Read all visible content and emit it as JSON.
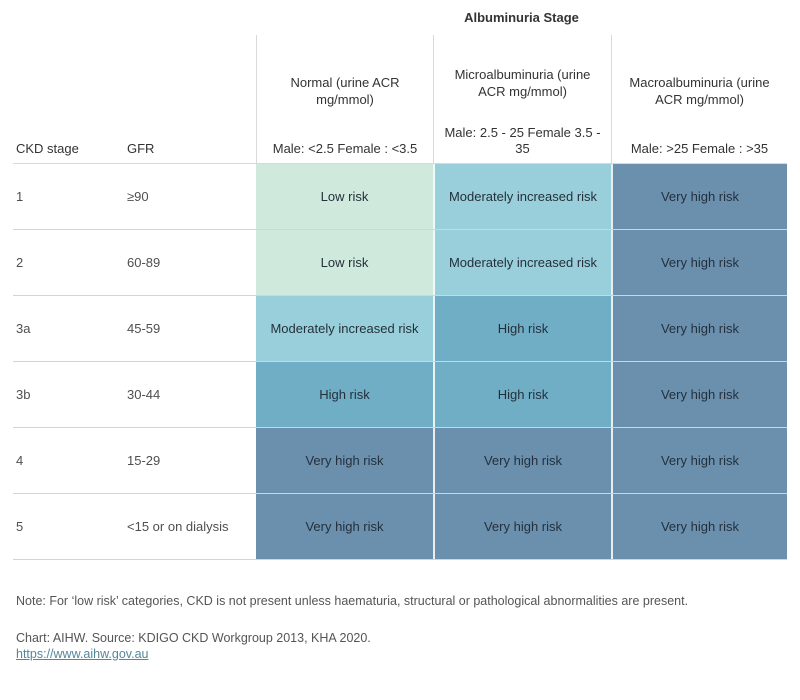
{
  "chart_data": {
    "type": "heatmap",
    "title": "Albuminuria Stage",
    "row_header_labels": [
      "CKD stage",
      "GFR"
    ],
    "columns": [
      {
        "label": "Normal (urine ACR mg/mmol)",
        "threshold": "Male: <2.5  Female : <3.5"
      },
      {
        "label": "Microalbuminuria (urine ACR mg/mmol)",
        "threshold": "Male: 2.5 - 25 Female 3.5 - 35"
      },
      {
        "label": "Macroalbuminuria (urine ACR mg/mmol)",
        "threshold": "Male: >25 Female : >35"
      }
    ],
    "rows": [
      {
        "stage": "1",
        "gfr": "≥90",
        "risks": [
          "Low risk",
          "Moderately increased risk",
          "Very high risk"
        ]
      },
      {
        "stage": "2",
        "gfr": "60-89",
        "risks": [
          "Low risk",
          "Moderately increased risk",
          "Very high risk"
        ]
      },
      {
        "stage": "3a",
        "gfr": "45-59",
        "risks": [
          "Moderately increased risk",
          "High risk",
          "Very high risk"
        ]
      },
      {
        "stage": "3b",
        "gfr": "30-44",
        "risks": [
          "High risk",
          "High risk",
          "Very high risk"
        ]
      },
      {
        "stage": "4",
        "gfr": "15-29",
        "risks": [
          "Very high risk",
          "Very high risk",
          "Very high risk"
        ]
      },
      {
        "stage": "5",
        "gfr": "<15 or on dialysis",
        "risks": [
          "Very high risk",
          "Very high risk",
          "Very high risk"
        ]
      }
    ],
    "risk_colors": {
      "Low risk": "#cfe9dc",
      "Moderately increased risk": "#99cfda",
      "High risk": "#70aec6",
      "Very high risk": "#6b90ae"
    },
    "grid_line_color": "#d9d9d9"
  },
  "footer": {
    "note": "Note: For ‘low risk’ categories, CKD is not present unless haematuria, structural or pathological abnormalities are present.",
    "source": "Chart: AIHW.  Source: KDIGO CKD Workgroup 2013, KHA 2020.",
    "link": "https://www.aihw.gov.au"
  }
}
